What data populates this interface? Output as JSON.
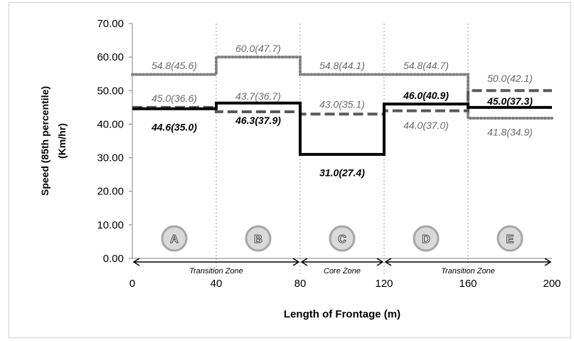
{
  "chart_data": {
    "type": "line",
    "title": "",
    "xlabel": "Length of Frontage (m)",
    "ylabel_line1": "Speed (85th percentile)",
    "ylabel_line2": "(Km/hr)",
    "xlim": [
      0,
      200
    ],
    "ylim": [
      0,
      70
    ],
    "x_ticks": [
      "0",
      "40",
      "80",
      "120",
      "160",
      "200"
    ],
    "y_ticks": [
      "0.00",
      "10.00",
      "20.00",
      "30.00",
      "40.00",
      "50.00",
      "60.00",
      "70.00"
    ],
    "vertical_grid": "dotted at 40, 80, 120, 160",
    "legend": "none",
    "series": [
      {
        "style": "dotted",
        "color": "#808080",
        "segments": [
          {
            "x": [
              0,
              40
            ],
            "y": 54.8
          },
          {
            "x": [
              40,
              80
            ],
            "y": 60.0
          },
          {
            "x": [
              80,
              120
            ],
            "y": 54.8
          },
          {
            "x": [
              120,
              160
            ],
            "y": 54.8
          },
          {
            "x": [
              160,
              200
            ],
            "y": 41.8
          }
        ]
      },
      {
        "style": "dashed",
        "color": "#595959",
        "segments": [
          {
            "x": [
              0,
              40
            ],
            "y": 45.0
          },
          {
            "x": [
              40,
              80
            ],
            "y": 43.7
          },
          {
            "x": [
              80,
              120
            ],
            "y": 43.0
          },
          {
            "x": [
              120,
              160
            ],
            "y": 44.0
          },
          {
            "x": [
              160,
              200
            ],
            "y": 50.0
          }
        ]
      },
      {
        "style": "solid",
        "color": "#000000",
        "segments": [
          {
            "x": [
              0,
              40
            ],
            "y": 44.6
          },
          {
            "x": [
              40,
              80
            ],
            "y": 46.3
          },
          {
            "x": [
              80,
              120
            ],
            "y": 31.0
          },
          {
            "x": [
              120,
              160
            ],
            "y": 46.0
          },
          {
            "x": [
              160,
              200
            ],
            "y": 45.0
          }
        ]
      }
    ],
    "annotations": [
      {
        "text": "54.8(45.6)",
        "x": 20,
        "y": 57.5,
        "style": "gray"
      },
      {
        "text": "60.0(47.7)",
        "x": 60,
        "y": 62.6,
        "style": "gray"
      },
      {
        "text": "54.8(44.1)",
        "x": 100,
        "y": 57.5,
        "style": "gray"
      },
      {
        "text": "54.8(44.7)",
        "x": 140,
        "y": 57.5,
        "style": "gray"
      },
      {
        "text": "50.0(42.1)",
        "x": 180,
        "y": 53.7,
        "style": "gray"
      },
      {
        "text": "45.0(36.6)",
        "x": 20,
        "y": 47.7,
        "style": "gray"
      },
      {
        "text": "43.7(36.7)",
        "x": 60,
        "y": 48.4,
        "style": "gray"
      },
      {
        "text": "43.0(35.1)",
        "x": 100,
        "y": 45.9,
        "style": "gray"
      },
      {
        "text": "46.0(40.9)",
        "x": 140,
        "y": 48.6,
        "style": "bold"
      },
      {
        "text": "45.0(37.3)",
        "x": 180,
        "y": 46.9,
        "style": "bold"
      },
      {
        "text": "44.6(35.0)",
        "x": 20,
        "y": 39.1,
        "style": "bold"
      },
      {
        "text": "46.3(37.9)",
        "x": 60,
        "y": 41.2,
        "style": "bold"
      },
      {
        "text": "31.0(27.4)",
        "x": 100,
        "y": 25.6,
        "style": "bold"
      },
      {
        "text": "44.0(37.0)",
        "x": 140,
        "y": 39.7,
        "style": "gray"
      },
      {
        "text": "41.8(34.9)",
        "x": 180,
        "y": 37.7,
        "style": "gray"
      }
    ],
    "section_markers": [
      {
        "label": "A",
        "x": 20
      },
      {
        "label": "B",
        "x": 60
      },
      {
        "label": "C",
        "x": 100
      },
      {
        "label": "D",
        "x": 140
      },
      {
        "label": "E",
        "x": 180
      }
    ],
    "zones": [
      {
        "label": "Transition Zone",
        "x": [
          0,
          80
        ]
      },
      {
        "label": "Core Zone",
        "x": [
          80,
          120
        ]
      },
      {
        "label": "Transition Zone",
        "x": [
          120,
          200
        ]
      }
    ]
  }
}
